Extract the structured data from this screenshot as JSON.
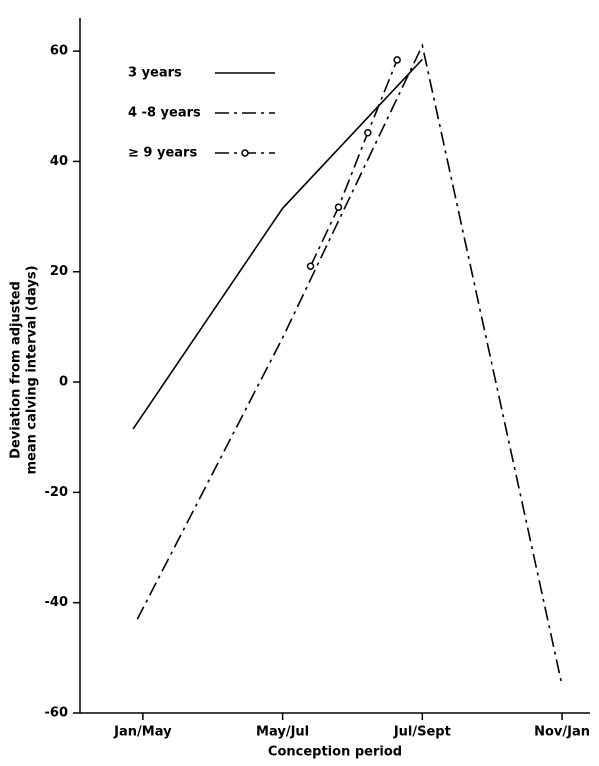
{
  "chart_data": {
    "type": "line",
    "y_label": [
      "Deviation from adjusted",
      "mean calving interval (days)"
    ],
    "x_label": "Conception period",
    "xlim": [
      -0.45,
      3.2
    ],
    "xticks": [
      {
        "value": 0,
        "label": "Jan/May"
      },
      {
        "value": 1,
        "label": "May/Jul"
      },
      {
        "value": 2,
        "label": "Jul/Sept"
      },
      {
        "value": 3,
        "label": "Nov/Jan"
      }
    ],
    "ylim": [
      -60,
      66
    ],
    "yticks": [
      -60,
      -40,
      -20,
      0,
      20,
      40,
      60
    ],
    "legend": "top-left",
    "series": [
      {
        "name": "3 years",
        "color": "#000000",
        "style": "solid",
        "markers": false,
        "x": [
          -0.07,
          1,
          2
        ],
        "values": [
          -8.5,
          31.5,
          58.5
        ]
      },
      {
        "name": "4 -8 years",
        "color": "#000000",
        "style": "dashdot",
        "markers": false,
        "x": [
          -0.04,
          1,
          2,
          3
        ],
        "values": [
          -43,
          8,
          61,
          -55
        ]
      },
      {
        "name": "≥ 9 years",
        "color": "#000000",
        "style": "dashdot",
        "markers": true,
        "x": [
          1.2,
          1.4,
          1.61,
          1.82
        ],
        "values": [
          21,
          31.7,
          45.2,
          58.4
        ]
      }
    ]
  }
}
